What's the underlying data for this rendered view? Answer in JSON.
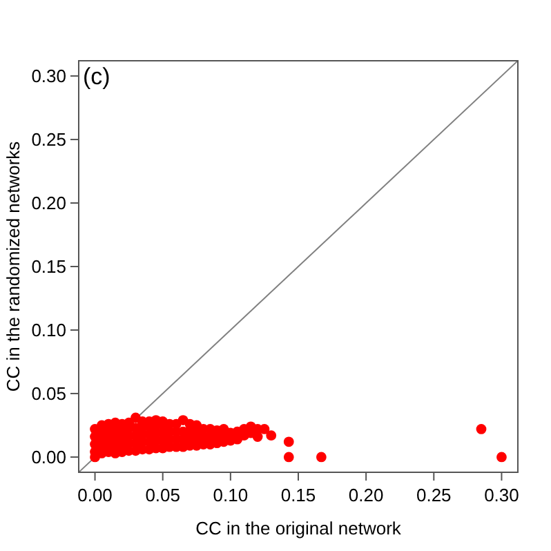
{
  "chart_data": {
    "type": "scatter",
    "xlabel": "CC in the original network",
    "ylabel": "CC in the randomized networks",
    "annotations": [
      "(c)"
    ],
    "xlim": [
      -0.012,
      0.312
    ],
    "ylim": [
      -0.012,
      0.312
    ],
    "xticks": [
      {
        "value": 0,
        "label": "0.00"
      },
      {
        "value": 0.05,
        "label": "0.05"
      },
      {
        "value": 0.1,
        "label": "0.10"
      },
      {
        "value": 0.15,
        "label": "0.15"
      },
      {
        "value": 0.2,
        "label": "0.20"
      },
      {
        "value": 0.25,
        "label": "0.25"
      },
      {
        "value": 0.3,
        "label": "0.30"
      }
    ],
    "yticks": [
      {
        "value": 0,
        "label": "0.00"
      },
      {
        "value": 0.05,
        "label": "0.05"
      },
      {
        "value": 0.1,
        "label": "0.10"
      },
      {
        "value": 0.15,
        "label": "0.15"
      },
      {
        "value": 0.2,
        "label": "0.20"
      },
      {
        "value": 0.25,
        "label": "0.25"
      },
      {
        "value": 0.3,
        "label": "0.30"
      }
    ],
    "grid": false,
    "marker": "circle",
    "series": [
      {
        "type": "line",
        "marker": "none",
        "color": "#808080",
        "line_style": "solid",
        "x": [
          -0.012,
          0.312
        ],
        "values": [
          -0.012,
          0.312
        ]
      },
      {
        "color": "#ff0000",
        "x": [
          0,
          0,
          0,
          0,
          0,
          0.005,
          0.005,
          0.005,
          0.005,
          0.005,
          0.01,
          0.01,
          0.01,
          0.01,
          0.01,
          0.015,
          0.015,
          0.015,
          0.015,
          0.015,
          0.02,
          0.02,
          0.02,
          0.02,
          0.02,
          0.025,
          0.025,
          0.025,
          0.025,
          0.025,
          0.03,
          0.03,
          0.03,
          0.03,
          0.03,
          0.035,
          0.035,
          0.035,
          0.035,
          0.035,
          0.04,
          0.04,
          0.04,
          0.04,
          0.04,
          0.045,
          0.045,
          0.045,
          0.045,
          0.045,
          0.05,
          0.05,
          0.05,
          0.05,
          0.05,
          0.055,
          0.055,
          0.055,
          0.055,
          0.06,
          0.06,
          0.06,
          0.06,
          0.065,
          0.065,
          0.065,
          0.065,
          0.07,
          0.07,
          0.07,
          0.07,
          0.075,
          0.075,
          0.075,
          0.075,
          0.08,
          0.08,
          0.08,
          0.085,
          0.085,
          0.085,
          0.09,
          0.09,
          0.09,
          0.095,
          0.095,
          0.095,
          0.1,
          0.1,
          0.105,
          0.105,
          0.11,
          0.11,
          0.115,
          0.115,
          0.12,
          0.12,
          0.125,
          0.13,
          0.143,
          0.143,
          0.167,
          0.285,
          0.3
        ],
        "values": [
          0.004,
          0.01,
          0.016,
          0.022,
          0,
          0.003,
          0.009,
          0.015,
          0.021,
          0.025,
          0.004,
          0.01,
          0.016,
          0.022,
          0.026,
          0.003,
          0.009,
          0.015,
          0.021,
          0.027,
          0.004,
          0.01,
          0.016,
          0.022,
          0.026,
          0.005,
          0.011,
          0.017,
          0.023,
          0.027,
          0.005,
          0.011,
          0.017,
          0.023,
          0.031,
          0.006,
          0.012,
          0.018,
          0.024,
          0.028,
          0.006,
          0.012,
          0.018,
          0.024,
          0.028,
          0.007,
          0.013,
          0.019,
          0.025,
          0.029,
          0.007,
          0.013,
          0.019,
          0.025,
          0.028,
          0.008,
          0.014,
          0.02,
          0.026,
          0.008,
          0.014,
          0.02,
          0.026,
          0.008,
          0.014,
          0.02,
          0.029,
          0.009,
          0.015,
          0.021,
          0.026,
          0.009,
          0.015,
          0.021,
          0.025,
          0.01,
          0.016,
          0.022,
          0.01,
          0.016,
          0.022,
          0.011,
          0.017,
          0.021,
          0.012,
          0.018,
          0.022,
          0.013,
          0.019,
          0.014,
          0.02,
          0.017,
          0.022,
          0.019,
          0.024,
          0.016,
          0.022,
          0.022,
          0.017,
          0.012,
          0,
          0,
          0.022,
          0
        ]
      }
    ]
  }
}
